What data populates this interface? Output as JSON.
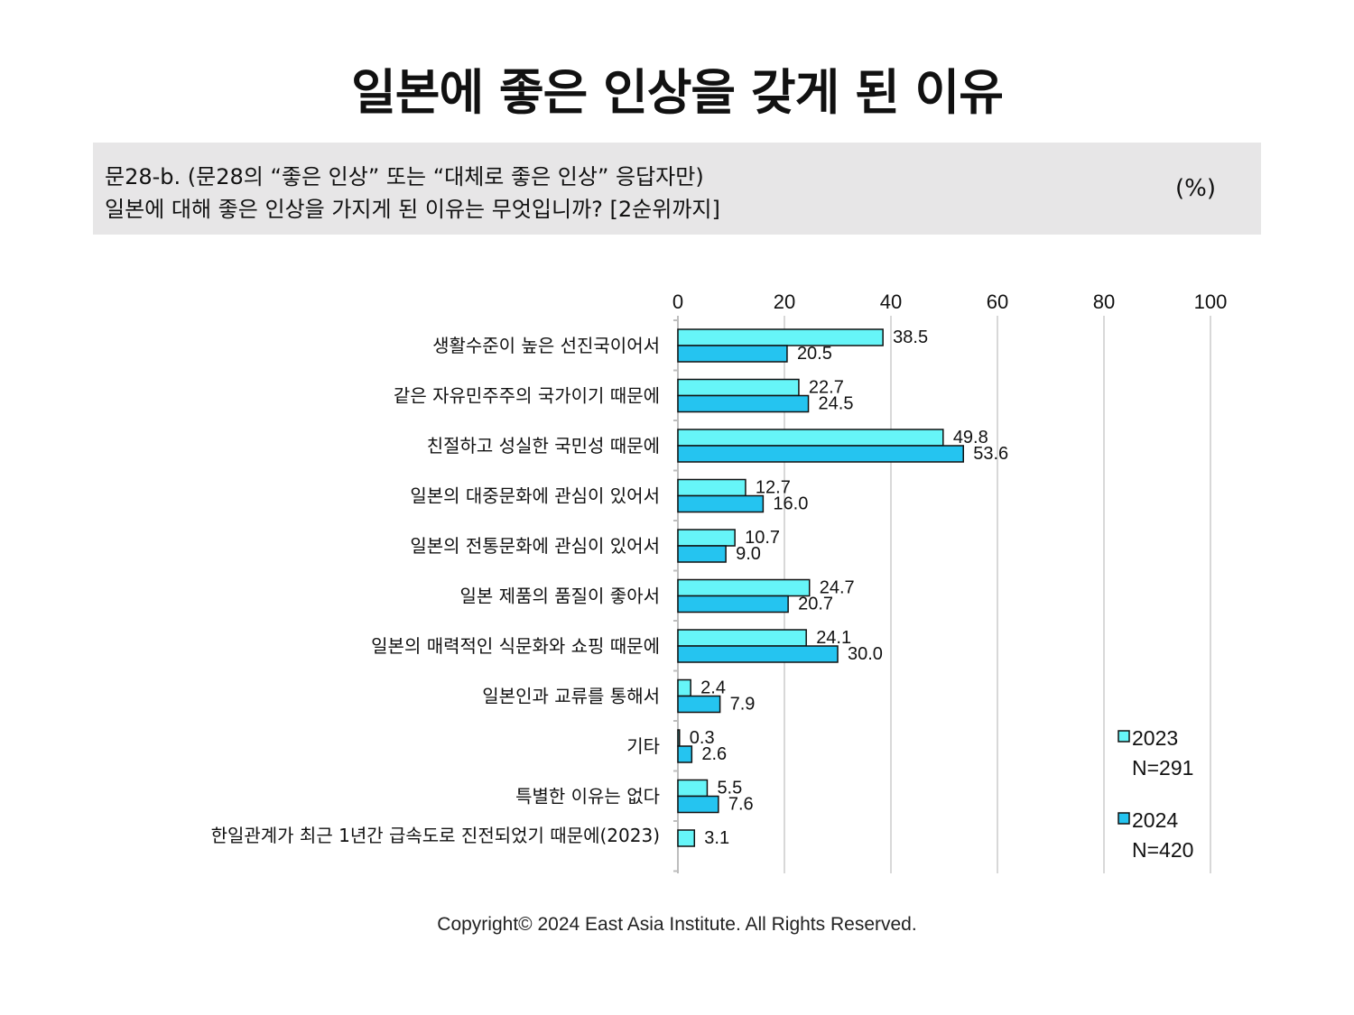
{
  "header": {
    "title": "일본에 좋은 인상을 갖게 된 이유",
    "question_line1": "문28-b. (문28의 “좋은 인상” 또는 “대체로 좋은 인상” 응답자만)",
    "question_line2": "일본에 대해 좋은 인상을 가지게 된 이유는 무엇입니까? [2순위까지]",
    "unit": "(%)"
  },
  "footer": {
    "copyright": "Copyright© 2024 East Asia Institute. All Rights Reserved."
  },
  "colors": {
    "series_2023": "#66f5f8",
    "series_2024": "#25c4f0",
    "bar_border": "#111111",
    "grid": "#cccccc"
  },
  "chart_data": {
    "type": "bar",
    "orientation": "horizontal",
    "xlim": [
      0,
      100
    ],
    "ticks": [
      0,
      20,
      40,
      60,
      80,
      100
    ],
    "tick_labels": [
      "0",
      "20",
      "40",
      "60",
      "80",
      "100"
    ],
    "grid": true,
    "legend_position": "right",
    "categories": [
      "생활수준이 높은 선진국이어서",
      "같은 자유민주주의 국가이기 때문에",
      "친절하고 성실한 국민성 때문에",
      "일본의 대중문화에 관심이 있어서",
      "일본의 전통문화에 관심이 있어서",
      "일본 제품의 품질이 좋아서",
      "일본의 매력적인 식문화와 쇼핑 때문에",
      "일본인과 교류를 통해서",
      "기타",
      "특별한 이유는 없다",
      "한일관계가 최근 1년간 급속도로 진전되었기 때문에(2023)"
    ],
    "series": [
      {
        "name": "2023",
        "n_label": "N=291",
        "values": [
          38.5,
          22.7,
          49.8,
          12.7,
          10.7,
          24.7,
          24.1,
          2.4,
          0.3,
          5.5,
          3.1
        ],
        "labels": [
          "38.5",
          "22.7",
          "49.8",
          "12.7",
          "10.7",
          "24.7",
          "24.1",
          "2.4",
          "0.3",
          "5.5",
          "3.1"
        ]
      },
      {
        "name": "2024",
        "n_label": "N=420",
        "values": [
          20.5,
          24.5,
          53.6,
          16.0,
          9.0,
          20.7,
          30.0,
          7.9,
          2.6,
          7.6,
          null
        ],
        "labels": [
          "20.5",
          "24.5",
          "53.6",
          "16.0",
          "9.0",
          "20.7",
          "30.0",
          "7.9",
          "2.6",
          "7.6",
          null
        ]
      }
    ]
  }
}
